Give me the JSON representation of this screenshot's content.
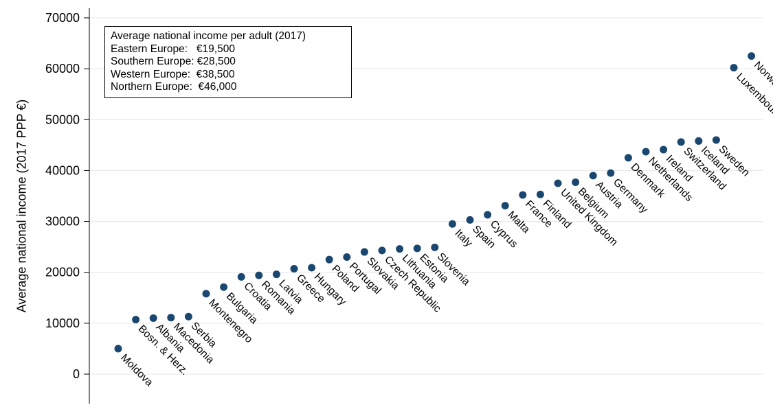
{
  "chart_data": {
    "type": "scatter",
    "ylabel": "Average national income (2017 PPP €)",
    "xlabel": "",
    "ylim": [
      0,
      70000
    ],
    "yticks": [
      0,
      10000,
      20000,
      30000,
      40000,
      50000,
      60000,
      70000
    ],
    "grid": true,
    "marker_color": "#1a476f",
    "annotation": {
      "title": "Average national income per adult (2017)",
      "lines": [
        "Eastern Europe:   €19,500",
        "Southern Europe: €28,500",
        "Western Europe:  €38,500",
        "Northern Europe:  €46,000"
      ]
    },
    "points": [
      {
        "label": "Moldova",
        "value": 5000
      },
      {
        "label": "Bosn. & Herz.",
        "value": 10700
      },
      {
        "label": "Albania",
        "value": 11000
      },
      {
        "label": "Macedonia",
        "value": 11100
      },
      {
        "label": "Serbia",
        "value": 11300
      },
      {
        "label": "Montenegro",
        "value": 15800
      },
      {
        "label": "Bulgaria",
        "value": 17100
      },
      {
        "label": "Croatia",
        "value": 19100
      },
      {
        "label": "Romania",
        "value": 19400
      },
      {
        "label": "Latvia",
        "value": 19600
      },
      {
        "label": "Greece",
        "value": 20700
      },
      {
        "label": "Hungary",
        "value": 20900
      },
      {
        "label": "Poland",
        "value": 22500
      },
      {
        "label": "Portugal",
        "value": 23000
      },
      {
        "label": "Slovakia",
        "value": 24000
      },
      {
        "label": "Czech Republic",
        "value": 24300
      },
      {
        "label": "Lithuania",
        "value": 24600
      },
      {
        "label": "Estonia",
        "value": 24700
      },
      {
        "label": "Slovenia",
        "value": 24900
      },
      {
        "label": "Italy",
        "value": 29500
      },
      {
        "label": "Spain",
        "value": 30300
      },
      {
        "label": "Cyprus",
        "value": 31300
      },
      {
        "label": "Malta",
        "value": 33100
      },
      {
        "label": "France",
        "value": 35200
      },
      {
        "label": "Finland",
        "value": 35300
      },
      {
        "label": "United Kingdom",
        "value": 37500
      },
      {
        "label": "Belgium",
        "value": 37700
      },
      {
        "label": "Austria",
        "value": 39000
      },
      {
        "label": "Germany",
        "value": 39500
      },
      {
        "label": "Denmark",
        "value": 42500
      },
      {
        "label": "Netherlands",
        "value": 43700
      },
      {
        "label": "Ireland",
        "value": 44100
      },
      {
        "label": "Switzerland",
        "value": 45600
      },
      {
        "label": "Iceland",
        "value": 45800
      },
      {
        "label": "Sweden",
        "value": 46000
      },
      {
        "label": "Luxembourg",
        "value": 60200
      },
      {
        "label": "Norway",
        "value": 62500
      }
    ]
  }
}
